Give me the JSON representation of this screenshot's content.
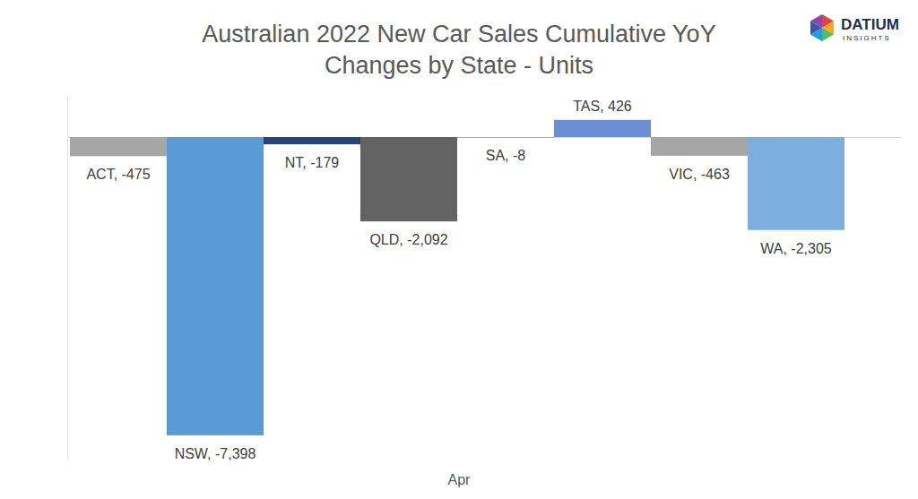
{
  "chart_data": {
    "type": "bar",
    "title": [
      "Australian 2022 New Car Sales Cumulative YoY",
      "Changes by State - Units"
    ],
    "x_label": "Apr",
    "annotations": [
      "DATIUM",
      "INSIGHTS"
    ],
    "categories": [
      "ACT",
      "NSW",
      "NT",
      "QLD",
      "SA",
      "TAS",
      "VIC",
      "WA"
    ],
    "values": [
      -475,
      -7398,
      -179,
      -2092,
      -8,
      426,
      -463,
      -2305
    ],
    "value_labels": [
      "ACT, -475",
      "NSW, -7,398",
      "NT, -179",
      "QLD, -2,092",
      "SA, -8",
      "TAS, 426",
      "VIC, -463",
      "WA, -2,305"
    ],
    "colors": [
      "#a6a6a6",
      "#5b9bd5",
      "#264478",
      "#636363",
      "#9e480e",
      "#6a8fd4",
      "#a5a5a5",
      "#7cafdd"
    ],
    "ylim": [
      -8000,
      1000
    ],
    "yticks": [
      0
    ],
    "grid": true,
    "data_labels": true,
    "tick_labels": false
  }
}
